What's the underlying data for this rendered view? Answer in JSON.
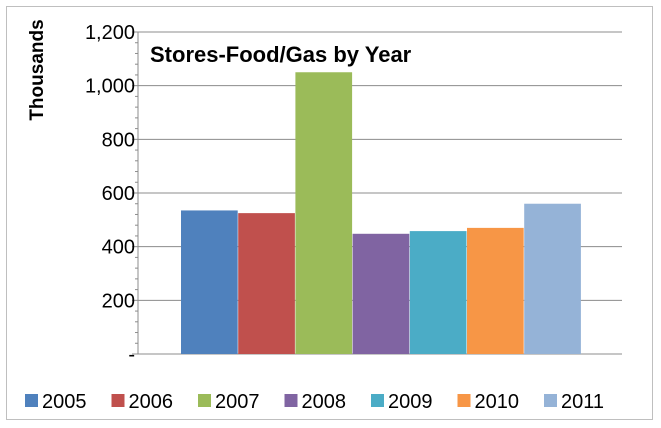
{
  "chart_data": {
    "type": "bar",
    "title": "Stores-Food/Gas by Year",
    "ylabel": "Thousands",
    "xlabel": "",
    "ylim": [
      0,
      1200
    ],
    "yticks": [
      0,
      200,
      400,
      600,
      800,
      1000,
      1200
    ],
    "ytick_labels": [
      "-",
      "200",
      "400",
      "600",
      "800",
      "1,000",
      "1,200"
    ],
    "grid": true,
    "legend_position": "bottom",
    "series": [
      {
        "name": "2005",
        "value": 535,
        "color": "#4F81BD"
      },
      {
        "name": "2006",
        "value": 525,
        "color": "#C0504D"
      },
      {
        "name": "2007",
        "value": 1050,
        "color": "#9BBB59"
      },
      {
        "name": "2008",
        "value": 448,
        "color": "#8064A2"
      },
      {
        "name": "2009",
        "value": 458,
        "color": "#4BACC6"
      },
      {
        "name": "2010",
        "value": 470,
        "color": "#F79646"
      },
      {
        "name": "2011",
        "value": 560,
        "color": "#95B3D7"
      }
    ]
  }
}
